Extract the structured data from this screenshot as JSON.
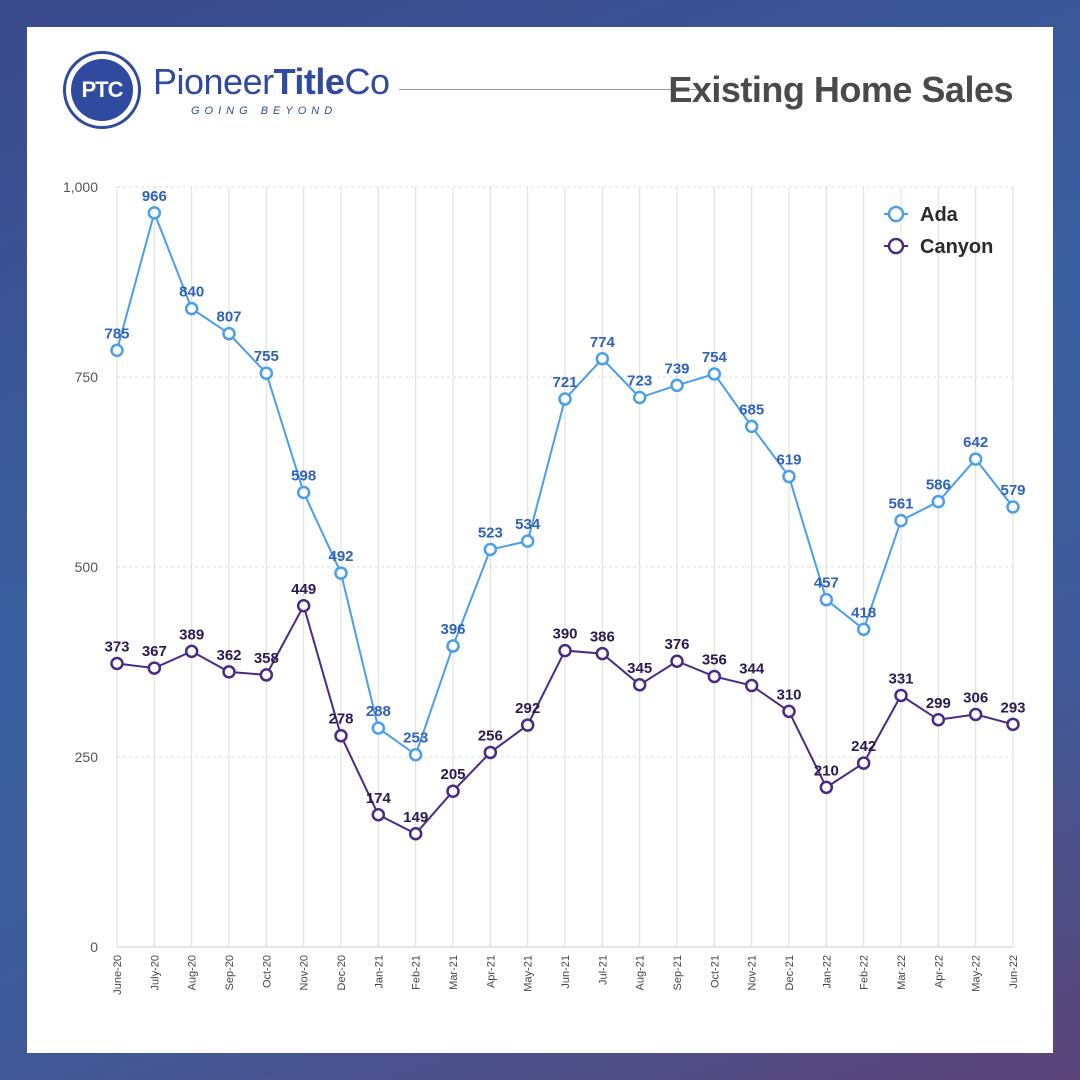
{
  "brand": {
    "initials": "PTC",
    "name_part1": "Pioneer",
    "name_part2": "Title",
    "name_part3": "Co",
    "tagline": "GOING BEYOND"
  },
  "page_title": "Existing Home Sales",
  "colors": {
    "ada": "#4a9fe8",
    "ada_label": "#2f62b8",
    "canyon": "#4b2a86",
    "canyon_label": "#2a1b4f",
    "grid": "#dcdcdc"
  },
  "chart_data": {
    "type": "line",
    "title": "Existing Home Sales",
    "xlabel": "",
    "ylabel": "",
    "ylim": [
      0,
      1000
    ],
    "yticks": [
      0,
      250,
      500,
      750,
      1000
    ],
    "ytick_labels": [
      "0",
      "250",
      "500",
      "750",
      "1,000"
    ],
    "grid": true,
    "legend_position": "top-right",
    "categories": [
      "June-20",
      "July-20",
      "Aug-20",
      "Sep-20",
      "Oct-20",
      "Nov-20",
      "Dec-20",
      "Jan-21",
      "Feb-21",
      "Mar-21",
      "Apr-21",
      "May-21",
      "Jun-21",
      "Jul-21",
      "Aug-21",
      "Sep-21",
      "Oct-21",
      "Nov-21",
      "Dec-21",
      "Jan-22",
      "Feb-22",
      "Mar-22",
      "Apr-22",
      "May-22",
      "Jun-22"
    ],
    "series": [
      {
        "name": "Ada",
        "values": [
          785,
          966,
          840,
          807,
          755,
          598,
          492,
          288,
          253,
          396,
          523,
          534,
          721,
          774,
          723,
          739,
          754,
          685,
          619,
          457,
          418,
          561,
          586,
          642,
          579
        ]
      },
      {
        "name": "Canyon",
        "values": [
          373,
          367,
          389,
          362,
          358,
          449,
          278,
          174,
          149,
          205,
          256,
          292,
          390,
          386,
          345,
          376,
          356,
          344,
          310,
          210,
          242,
          331,
          299,
          306,
          293
        ]
      }
    ]
  }
}
